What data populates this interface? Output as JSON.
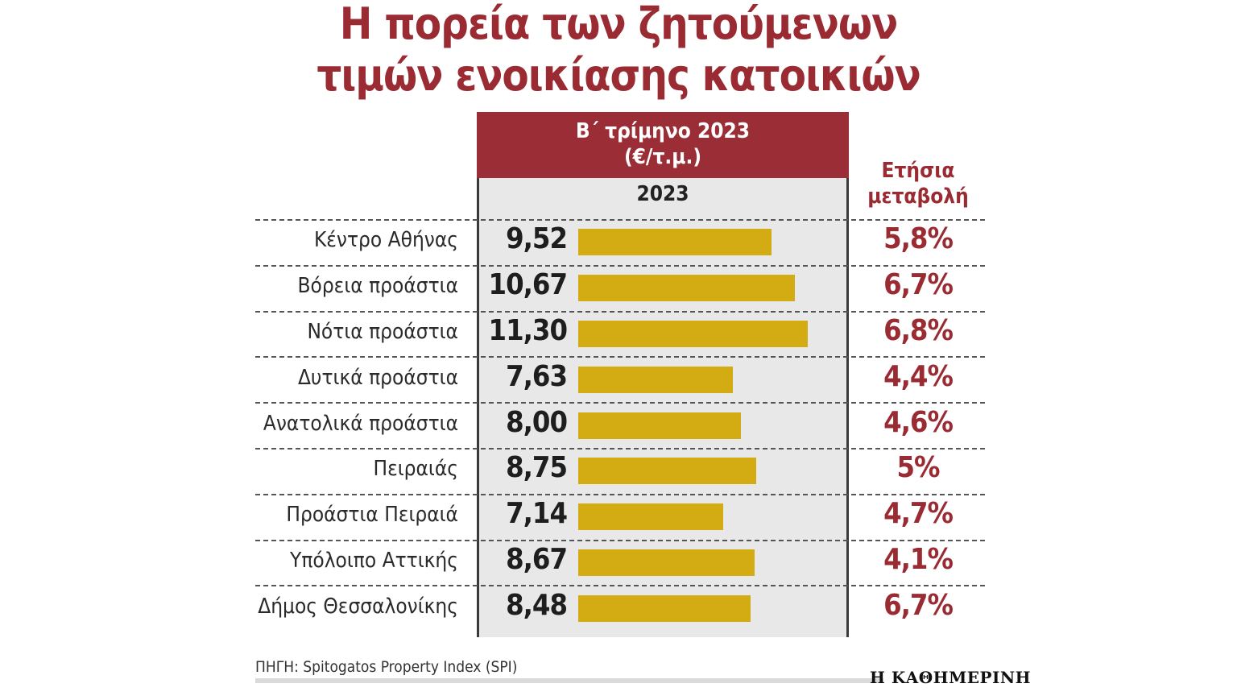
{
  "title": {
    "line1": "Η πορεία των ζητούμενων",
    "line2": "τιμών ενοικίασης κατοικιών"
  },
  "column_header": {
    "line1": "Β΄ τρίμηνο 2023",
    "line2": "(€/τ.μ.)"
  },
  "year_label": "2023",
  "change_header": {
    "line1": "Ετήσια",
    "line2": "μεταβολή"
  },
  "source": "ΠΗΓΗ: Spitogatos Property Index (SPI)",
  "publisher": "Η ΚΑΘΗΜΕΡΙΝΗ",
  "colors": {
    "accent": "#9a2b33",
    "bar": "#d2ac12",
    "column_bg": "#e8e8e8"
  },
  "chart_data": {
    "type": "bar",
    "title": "Η πορεία των ζητούμενων τιμών ενοικίασης κατοικιών",
    "series_name": "2023",
    "unit": "€/τ.μ.",
    "categories": [
      "Κέντρο Αθήνας",
      "Βόρεια προάστια",
      "Νότια προάστια",
      "Δυτικά προάστια",
      "Ανατολικά προάστια",
      "Πειραιάς",
      "Προάστια Πειραιά",
      "Υπόλοιπο Αττικής",
      "Δήμος Θεσσαλονίκης"
    ],
    "values": [
      9.52,
      10.67,
      11.3,
      7.63,
      8.0,
      8.75,
      7.14,
      8.67,
      8.48
    ],
    "value_labels": [
      "9,52",
      "10,67",
      "11,30",
      "7,63",
      "8,00",
      "8,75",
      "7,14",
      "8,67",
      "8,48"
    ],
    "annual_change": [
      "5,8%",
      "6,7%",
      "6,8%",
      "4,4%",
      "4,6%",
      "5%",
      "4,7%",
      "4,1%",
      "6,7%"
    ],
    "xlim": [
      0,
      11.3
    ]
  }
}
